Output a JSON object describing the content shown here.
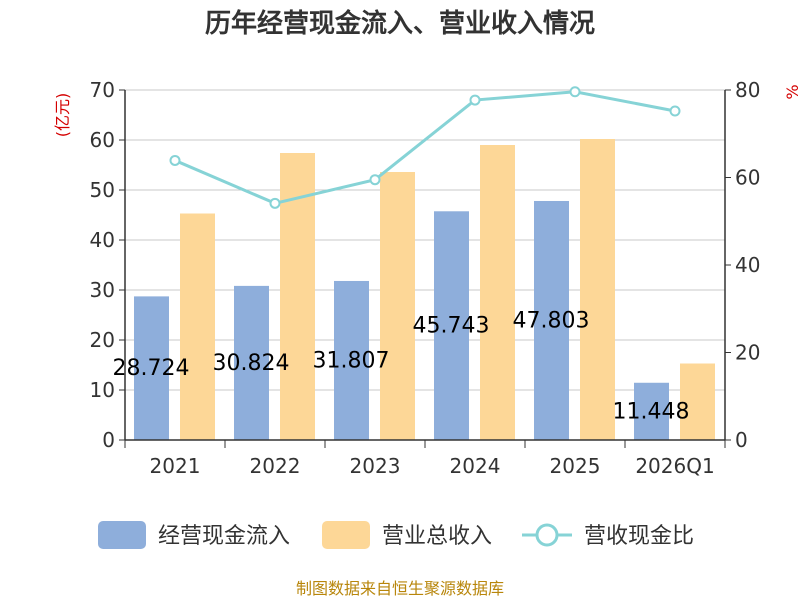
{
  "chart_data": {
    "type": "bar",
    "title": "历年经营现金流入、营业收入情况",
    "categories": [
      "2021",
      "2022",
      "2023",
      "2024",
      "2025",
      "2026Q1"
    ],
    "left_axis": {
      "unit": "(亿元)",
      "ylim": [
        0,
        70
      ],
      "ticks": [
        "0",
        "10",
        "20",
        "30",
        "40",
        "50",
        "60",
        "70"
      ]
    },
    "right_axis": {
      "unit": "%",
      "ylim": [
        0,
        80
      ],
      "ticks": [
        "0",
        "20",
        "40",
        "60",
        "80"
      ]
    },
    "series": [
      {
        "name": "经营现金流入",
        "type": "bar",
        "axis": "left",
        "color": "#8eaedb",
        "values": [
          28.724,
          30.824,
          31.807,
          45.743,
          47.803,
          11.448
        ],
        "labels": [
          "28.724",
          "30.824",
          "31.807",
          "45.743",
          "47.803",
          "11.448"
        ]
      },
      {
        "name": "营业总收入",
        "type": "bar",
        "axis": "left",
        "color": "#fdd797",
        "values": [
          45.3,
          57.4,
          53.6,
          59.0,
          60.2,
          15.3
        ]
      },
      {
        "name": "营收现金比",
        "type": "line",
        "axis": "right",
        "color": "#86d3d6",
        "values": [
          63.9,
          54.1,
          59.5,
          77.7,
          79.6,
          75.2
        ]
      }
    ],
    "grid": true,
    "legend_position": "bottom"
  },
  "source_text": "制图数据来自恒生聚源数据库"
}
